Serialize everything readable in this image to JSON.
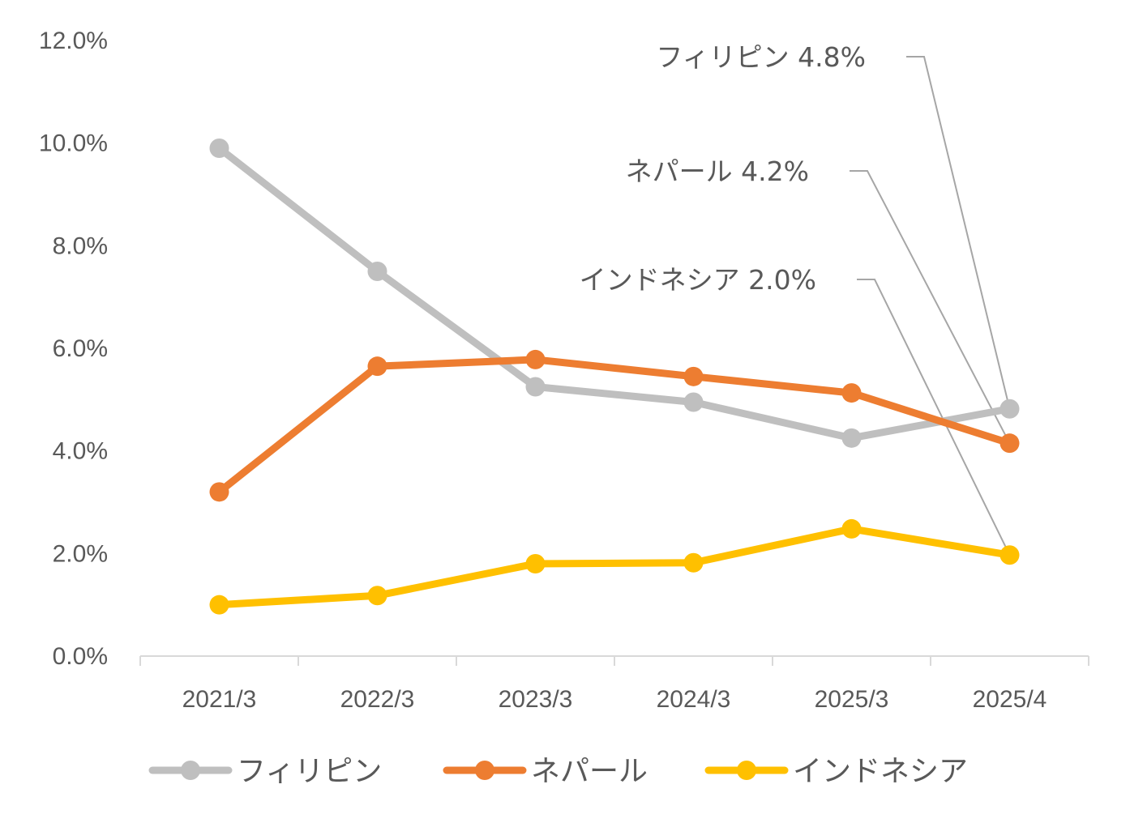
{
  "chart_data": {
    "type": "line",
    "categories": [
      "2021/3",
      "2022/3",
      "2023/3",
      "2024/3",
      "2025/3",
      "2025/4"
    ],
    "ylim": [
      0,
      12
    ],
    "yticks": [
      "0.0%",
      "2.0%",
      "4.0%",
      "6.0%",
      "8.0%",
      "10.0%",
      "12.0%"
    ],
    "legend_position": "bottom",
    "series": [
      {
        "name": "フィリピン",
        "color": "#bfbfbf",
        "values": [
          9.9,
          7.5,
          5.25,
          4.95,
          4.25,
          4.82
        ]
      },
      {
        "name": "ネパール",
        "color": "#ed7d31",
        "values": [
          3.2,
          5.65,
          5.78,
          5.45,
          5.13,
          4.15
        ]
      },
      {
        "name": "インドネシア",
        "color": "#ffc000",
        "values": [
          1.0,
          1.18,
          1.8,
          1.82,
          2.48,
          1.97
        ]
      }
    ],
    "annotations": [
      {
        "series": "フィリピン",
        "text": "フィリピン 4.8%"
      },
      {
        "series": "ネパール",
        "text": "ネパール 4.2%"
      },
      {
        "series": "インドネシア",
        "text": "インドネシア 2.0%"
      }
    ]
  }
}
